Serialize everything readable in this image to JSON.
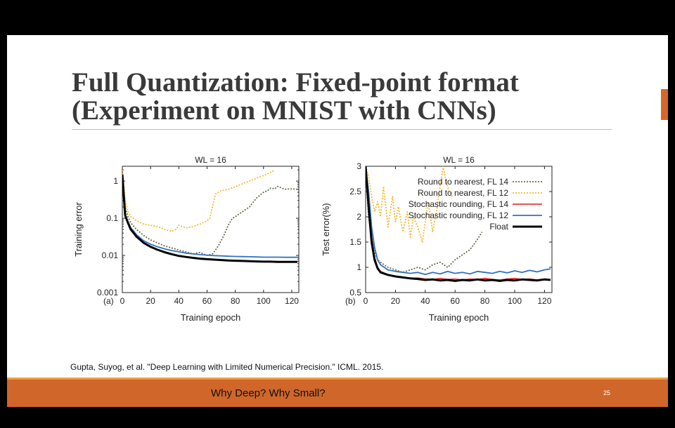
{
  "slide": {
    "title_line1": "Full Quantization: Fixed-point format",
    "title_line2": "(Experiment on MNIST with CNNs)",
    "citation": "Gupta, Suyog, et al. \"Deep Learning with Limited Numerical Precision.\" ICML. 2015.",
    "footer_text": "Why Deep? Why Small?",
    "page_number": "25"
  },
  "colors": {
    "accent": "#d0662a",
    "rn14": "#6a6a48",
    "rn12": "#f5b830",
    "sr14": "#e63c3c",
    "sr12": "#2f72c4",
    "float": "#000000"
  },
  "chart_data": [
    {
      "type": "line",
      "panel": "(a)",
      "title": "WL = 16",
      "xlabel": "Training epoch",
      "ylabel": "Training error",
      "yscale": "log",
      "xlim": [
        0,
        125
      ],
      "ylim": [
        0.001,
        2.5
      ],
      "xticks": [
        0,
        20,
        40,
        60,
        80,
        100,
        120
      ],
      "yticks": [
        0.001,
        0.01,
        0.1,
        1
      ],
      "ytick_labels": [
        "0.001",
        "0.01",
        "0.1",
        "1"
      ],
      "series": [
        {
          "key": "rn14",
          "style": "dotted",
          "x": [
            0,
            2,
            4,
            6,
            10,
            15,
            20,
            30,
            40,
            50,
            55,
            60,
            64,
            68,
            72,
            75,
            78,
            80,
            85,
            90,
            95,
            100,
            103,
            105,
            108,
            110,
            115,
            120,
            124
          ],
          "y": [
            1.8,
            0.2,
            0.11,
            0.075,
            0.05,
            0.035,
            0.026,
            0.018,
            0.014,
            0.011,
            0.012,
            0.01,
            0.011,
            0.018,
            0.035,
            0.065,
            0.1,
            0.11,
            0.15,
            0.2,
            0.35,
            0.5,
            0.55,
            0.65,
            0.62,
            0.72,
            0.6,
            0.62,
            0.6
          ]
        },
        {
          "key": "rn12",
          "style": "dotted",
          "x": [
            0,
            2,
            4,
            6,
            8,
            10,
            15,
            20,
            25,
            30,
            35,
            38,
            40,
            45,
            50,
            55,
            60,
            62,
            64,
            66,
            70,
            75,
            80,
            85,
            90,
            95,
            100,
            105,
            108
          ],
          "y": [
            2.0,
            0.3,
            0.15,
            0.11,
            0.1,
            0.085,
            0.07,
            0.065,
            0.06,
            0.05,
            0.045,
            0.05,
            0.065,
            0.055,
            0.06,
            0.07,
            0.085,
            0.1,
            0.22,
            0.45,
            0.55,
            0.6,
            0.7,
            0.85,
            1.0,
            1.2,
            1.4,
            1.7,
            2.0
          ]
        },
        {
          "key": "sr14",
          "style": "solid",
          "x": [
            0,
            2,
            4,
            6,
            8,
            10,
            15,
            20,
            25,
            30,
            35,
            40,
            45,
            50,
            55,
            60,
            65,
            70,
            75,
            80,
            85,
            90,
            95,
            100,
            105,
            110,
            115,
            120,
            124
          ],
          "y": [
            1.5,
            0.12,
            0.075,
            0.05,
            0.04,
            0.032,
            0.022,
            0.017,
            0.014,
            0.012,
            0.011,
            0.0095,
            0.009,
            0.0085,
            0.008,
            0.0078,
            0.0076,
            0.0074,
            0.0072,
            0.0071,
            0.007,
            0.0069,
            0.0068,
            0.0068,
            0.0067,
            0.0067,
            0.0066,
            0.0066,
            0.0066
          ]
        },
        {
          "key": "sr12",
          "style": "solid",
          "x": [
            0,
            2,
            4,
            6,
            8,
            10,
            15,
            20,
            25,
            30,
            35,
            40,
            45,
            50,
            55,
            60,
            65,
            70,
            75,
            80,
            85,
            90,
            95,
            100,
            105,
            110,
            115,
            120,
            124
          ],
          "y": [
            1.5,
            0.13,
            0.08,
            0.055,
            0.045,
            0.036,
            0.025,
            0.02,
            0.017,
            0.015,
            0.0135,
            0.0125,
            0.0115,
            0.011,
            0.0105,
            0.0102,
            0.0099,
            0.0097,
            0.0095,
            0.0094,
            0.0093,
            0.0092,
            0.0091,
            0.009,
            0.009,
            0.009,
            0.0089,
            0.0089,
            0.0089
          ]
        },
        {
          "key": "float",
          "style": "solid",
          "x": [
            0,
            2,
            4,
            6,
            8,
            10,
            15,
            20,
            25,
            30,
            35,
            40,
            45,
            50,
            55,
            60,
            65,
            70,
            75,
            80,
            85,
            90,
            95,
            100,
            105,
            110,
            115,
            120,
            124
          ],
          "y": [
            1.5,
            0.12,
            0.075,
            0.05,
            0.04,
            0.032,
            0.022,
            0.017,
            0.0142,
            0.0122,
            0.0108,
            0.0097,
            0.0091,
            0.0086,
            0.0082,
            0.0079,
            0.0077,
            0.0075,
            0.0073,
            0.0072,
            0.0071,
            0.007,
            0.0069,
            0.0068,
            0.0068,
            0.0067,
            0.0067,
            0.0067,
            0.0067
          ]
        }
      ]
    },
    {
      "type": "line",
      "panel": "(b)",
      "title": "WL = 16",
      "xlabel": "Training epoch",
      "ylabel": "Test error(%)",
      "yscale": "linear",
      "xlim": [
        0,
        125
      ],
      "ylim": [
        0.5,
        3
      ],
      "xticks": [
        0,
        20,
        40,
        60,
        80,
        100,
        120
      ],
      "yticks": [
        0.5,
        1,
        1.5,
        2,
        2.5,
        3
      ],
      "ytick_labels": [
        "0.5",
        "1",
        "1.5",
        "2",
        "2.5",
        "3"
      ],
      "legend_position": "top-right",
      "legend": [
        {
          "key": "rn14",
          "label": "Round to nearest, FL 14"
        },
        {
          "key": "rn12",
          "label": "Round to nearest, FL 12"
        },
        {
          "key": "sr14",
          "label": "Stochastic rounding, FL 14"
        },
        {
          "key": "sr12",
          "label": "Stochastic rounding, FL 12"
        },
        {
          "key": "float",
          "label": "Float"
        }
      ],
      "series": [
        {
          "key": "rn14",
          "style": "dotted",
          "x": [
            0,
            2,
            4,
            6,
            8,
            10,
            15,
            20,
            25,
            30,
            35,
            40,
            45,
            50,
            55,
            60,
            65,
            70,
            75,
            78
          ],
          "y": [
            3,
            2.0,
            1.6,
            1.3,
            1.15,
            1.1,
            1.0,
            0.95,
            0.9,
            0.95,
            1.0,
            0.95,
            1.05,
            1.1,
            1.0,
            1.15,
            1.25,
            1.35,
            1.55,
            1.7
          ]
        },
        {
          "key": "rn12",
          "style": "dotted",
          "x": [
            0,
            2,
            4,
            6,
            8,
            10,
            12,
            15,
            18,
            20,
            22,
            25,
            28,
            30,
            32,
            35,
            38,
            40,
            42,
            45,
            48,
            50,
            52,
            54,
            56,
            58
          ],
          "y": [
            3,
            2.8,
            2.4,
            2.1,
            2.3,
            2.0,
            2.6,
            1.8,
            2.4,
            1.9,
            2.2,
            1.7,
            2.1,
            1.6,
            2.0,
            1.8,
            1.5,
            1.9,
            2.3,
            1.7,
            2.2,
            2.6,
            3,
            2.7,
            2.5,
            2.4
          ]
        },
        {
          "key": "sr14",
          "style": "solid",
          "x": [
            0,
            2,
            4,
            6,
            8,
            10,
            15,
            20,
            25,
            30,
            35,
            40,
            45,
            50,
            55,
            60,
            65,
            70,
            75,
            80,
            85,
            90,
            95,
            100,
            105,
            110,
            115,
            120,
            124
          ],
          "y": [
            3,
            2.3,
            1.6,
            1.2,
            1.0,
            0.92,
            0.85,
            0.82,
            0.8,
            0.78,
            0.79,
            0.77,
            0.76,
            0.78,
            0.76,
            0.77,
            0.75,
            0.77,
            0.76,
            0.78,
            0.76,
            0.75,
            0.77,
            0.78,
            0.76,
            0.77,
            0.75,
            0.77,
            0.76
          ]
        },
        {
          "key": "sr12",
          "style": "solid",
          "x": [
            0,
            2,
            4,
            6,
            8,
            10,
            15,
            20,
            25,
            30,
            35,
            40,
            45,
            50,
            55,
            60,
            65,
            70,
            75,
            80,
            85,
            90,
            95,
            100,
            105,
            110,
            115,
            120,
            124
          ],
          "y": [
            3,
            2.5,
            1.8,
            1.4,
            1.15,
            1.05,
            0.95,
            0.92,
            0.9,
            0.88,
            0.9,
            0.86,
            0.9,
            0.87,
            0.92,
            0.88,
            0.9,
            0.87,
            0.92,
            0.9,
            0.88,
            0.92,
            0.89,
            0.93,
            0.9,
            0.94,
            0.91,
            0.95,
            0.97
          ]
        },
        {
          "key": "float",
          "style": "solid",
          "x": [
            0,
            2,
            4,
            6,
            8,
            10,
            15,
            20,
            25,
            30,
            35,
            40,
            45,
            50,
            55,
            60,
            65,
            70,
            75,
            80,
            85,
            90,
            95,
            100,
            105,
            110,
            115,
            120,
            124
          ],
          "y": [
            3,
            2.2,
            1.5,
            1.15,
            0.98,
            0.9,
            0.85,
            0.82,
            0.8,
            0.78,
            0.77,
            0.75,
            0.76,
            0.74,
            0.75,
            0.73,
            0.75,
            0.74,
            0.76,
            0.74,
            0.75,
            0.73,
            0.75,
            0.74,
            0.76,
            0.75,
            0.74,
            0.76,
            0.75
          ]
        }
      ]
    }
  ]
}
